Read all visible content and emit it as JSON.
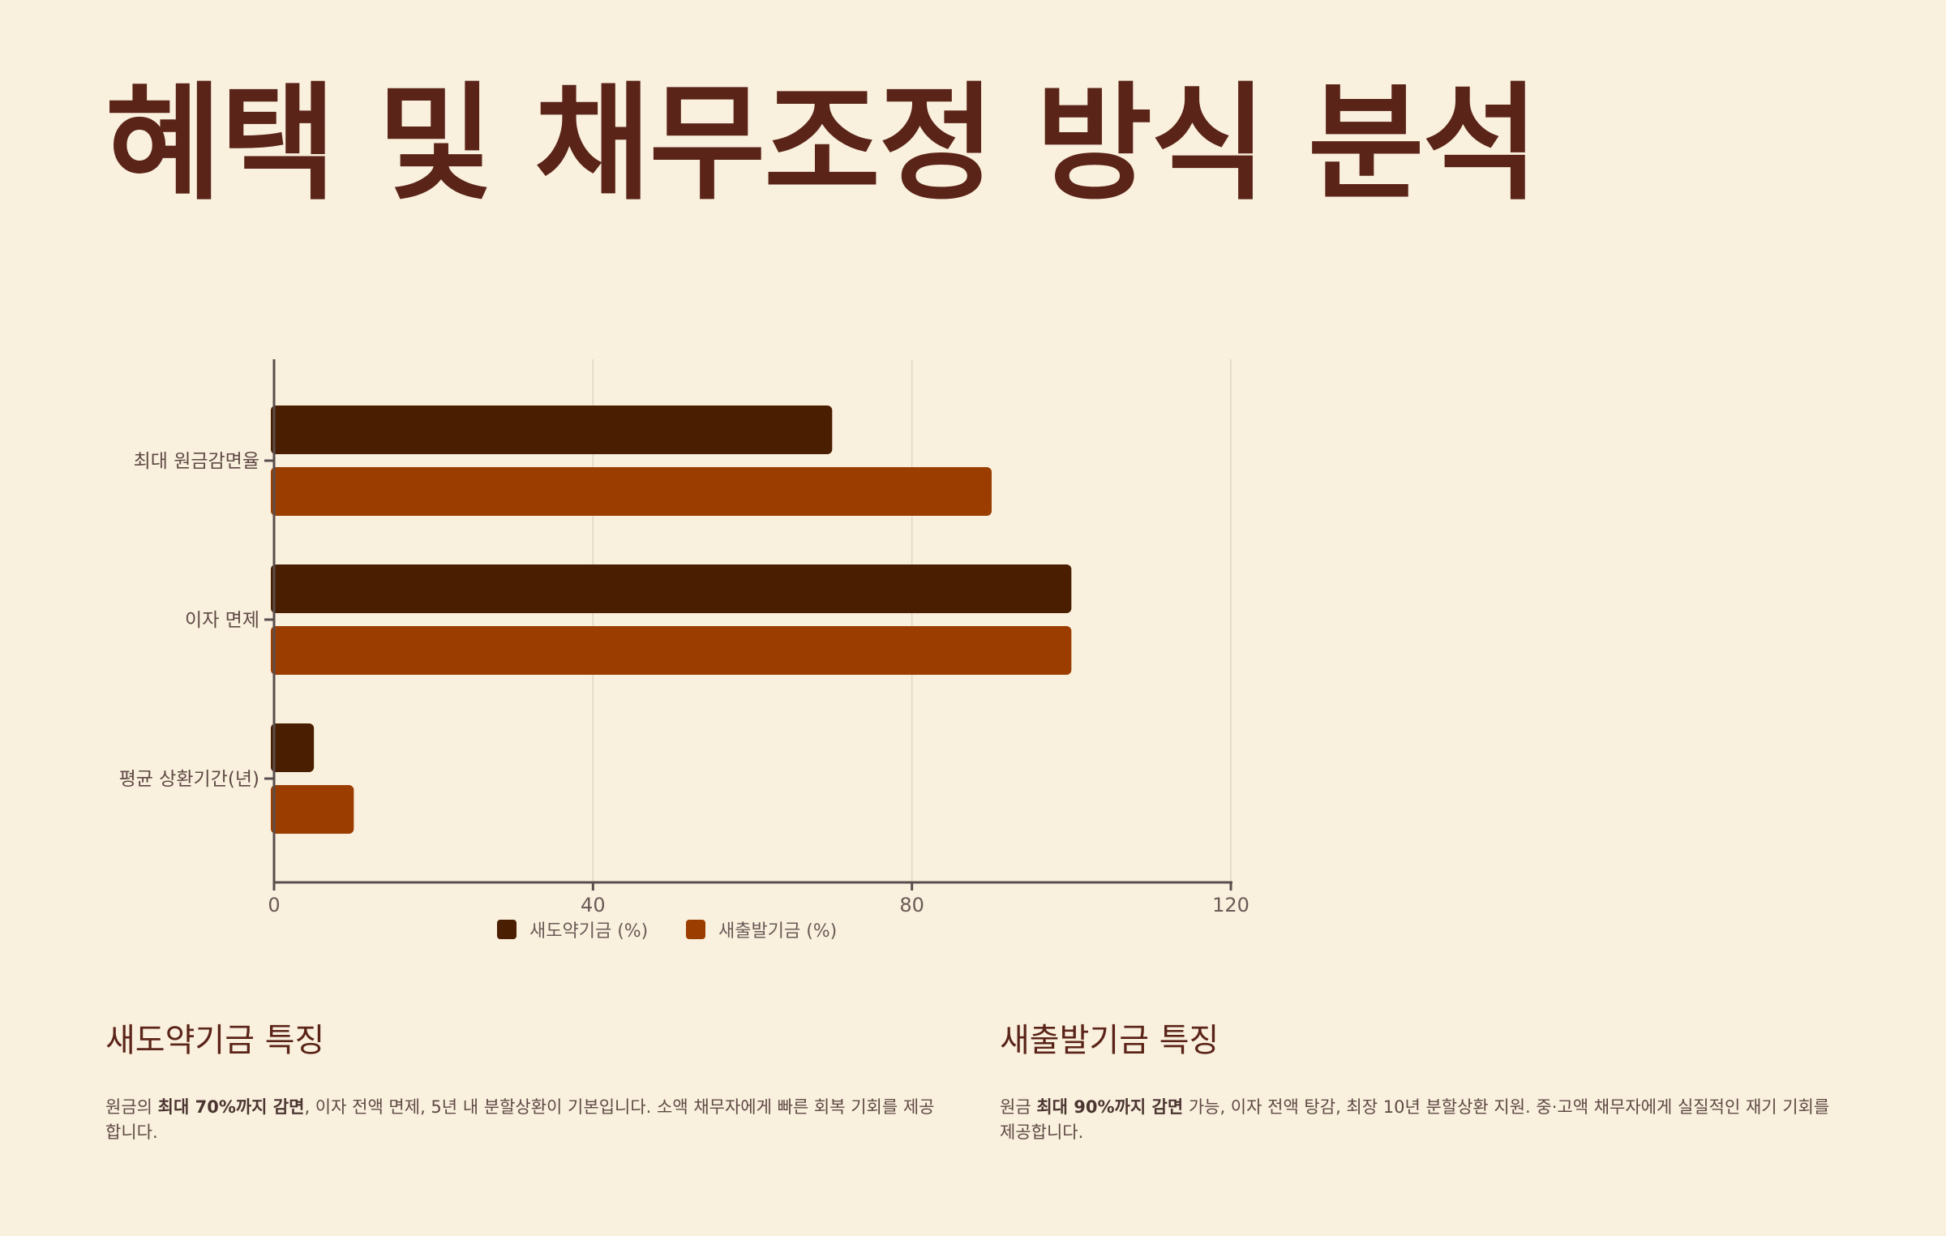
{
  "page": {
    "title": "혜택 및 채무조정 방식 분석"
  },
  "chart_data": {
    "type": "bar",
    "orientation": "horizontal",
    "title": "",
    "xlabel": "",
    "ylabel": "",
    "categories": [
      "최대 원금감면율",
      "이자 면제",
      "평균 상환기간(년)"
    ],
    "series": [
      {
        "name": "새도약기금 (%)",
        "values": [
          70,
          100,
          5
        ],
        "color": "#4A1E00"
      },
      {
        "name": "새출발기금 (%)",
        "values": [
          90,
          100,
          10
        ],
        "color": "#9C3D00"
      }
    ],
    "xlim": [
      0,
      120
    ],
    "xticks": [
      "0",
      "40",
      "80",
      "120"
    ],
    "grid": true,
    "legend_position": "bottom-center"
  },
  "sections": {
    "left": {
      "heading": "새도약기금 특징",
      "pre": "원금의 ",
      "bold": "최대 70%까지 감면",
      "post": ", 이자 전액 면제, 5년 내 분할상환이 기본입니다. 소액 채무자에게 빠른 회복 기회를 제공합니다."
    },
    "right": {
      "heading": "새출발기금 특징",
      "pre": "원금 ",
      "bold": "최대 90%까지 감면",
      "post": " 가능, 이자 전액 탕감, 최장 10년 분할상환 지원. 중·고액 채무자에게 실질적인 재기 기회를 제공합니다."
    }
  }
}
